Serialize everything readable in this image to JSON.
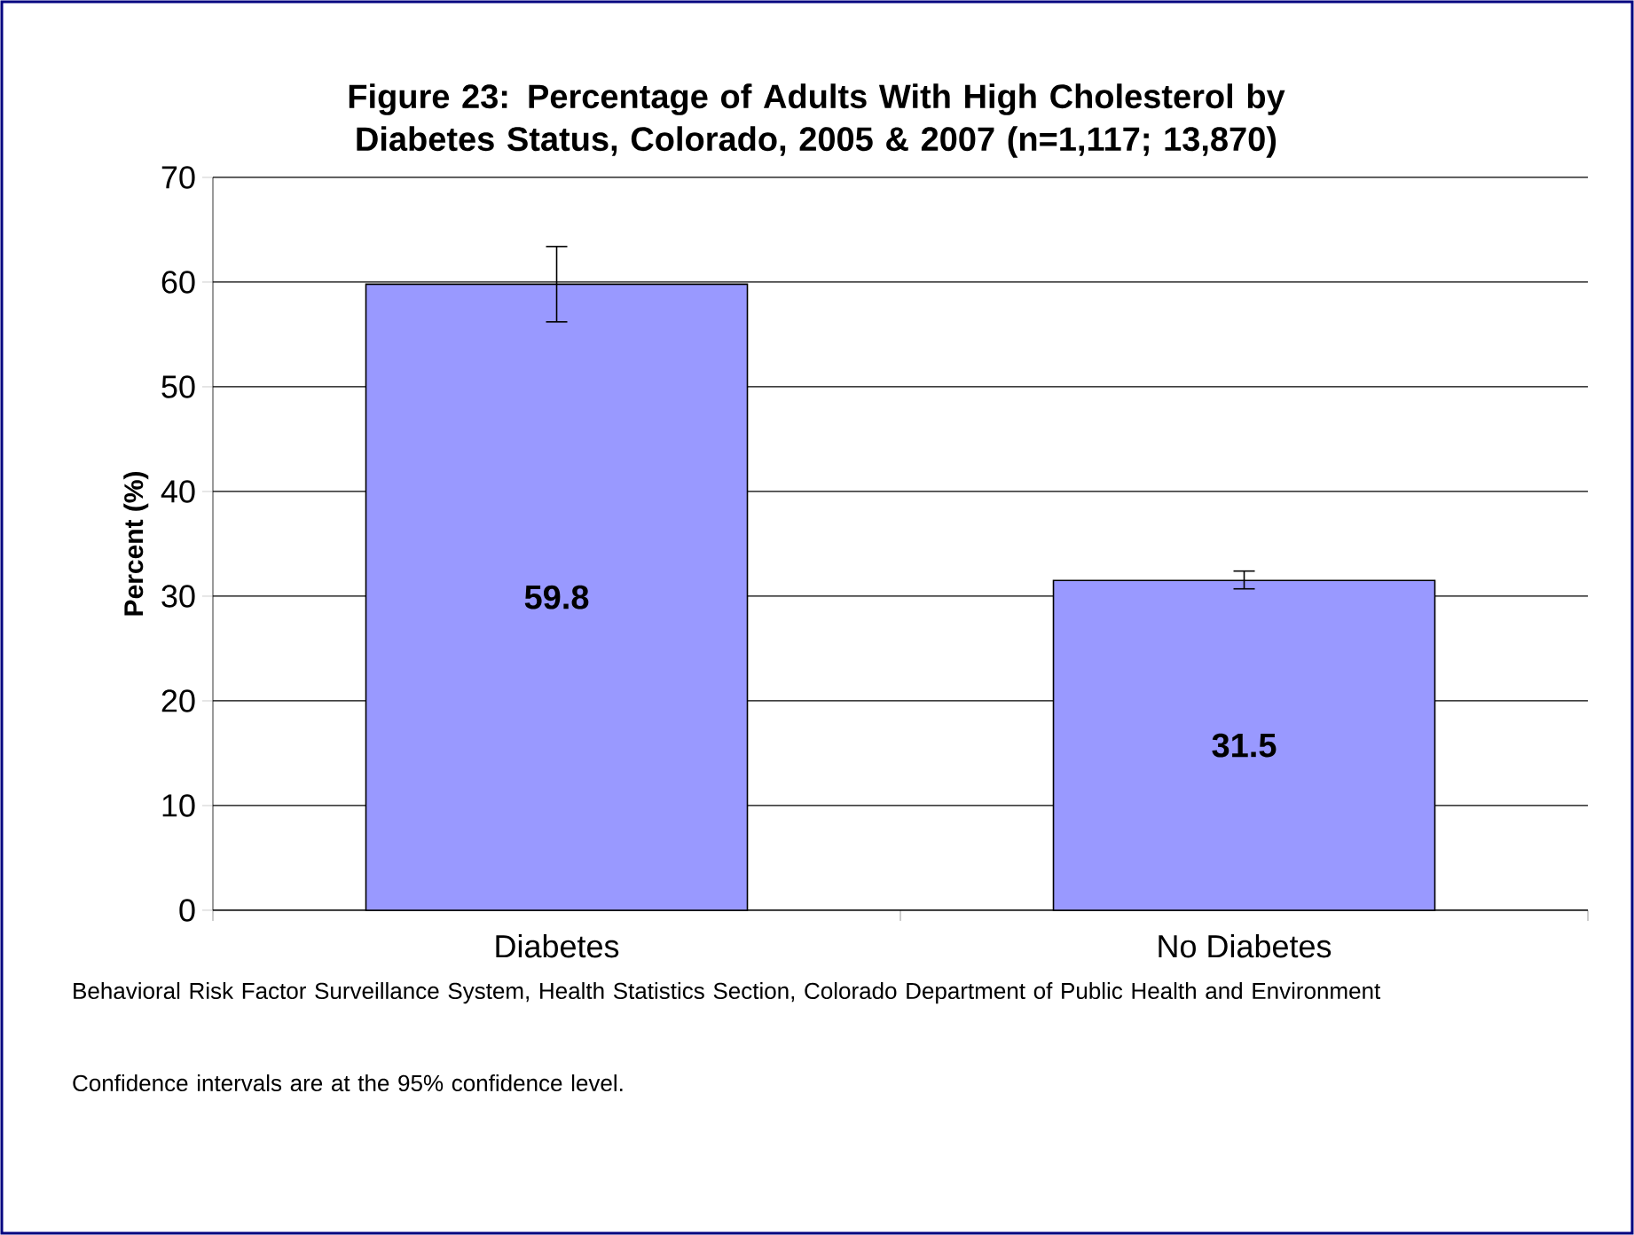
{
  "chart_data": {
    "type": "bar",
    "title": "Figure 23: Percentage of Adults With High Cholesterol by Diabetes Status, Colorado, 2005 & 2007 (n=1,117; 13,870)",
    "ylabel": "Percent (%)",
    "categories": [
      "Diabetes",
      "No Diabetes"
    ],
    "values": [
      59.8,
      31.5
    ],
    "errors": [
      [
        56.2,
        63.4
      ],
      [
        30.7,
        32.4
      ]
    ],
    "color": "#9999ff",
    "ylim": [
      0,
      70
    ],
    "yticks": [
      0,
      10,
      20,
      30,
      40,
      50,
      60,
      70
    ],
    "grid": "y",
    "data_labels": true,
    "annotations": [
      "Behavioral Risk Factor Surveillance System, Health Statistics Section, Colorado Department of Public Health and Environment",
      "Confidence intervals are at the 95% confidence level."
    ]
  }
}
